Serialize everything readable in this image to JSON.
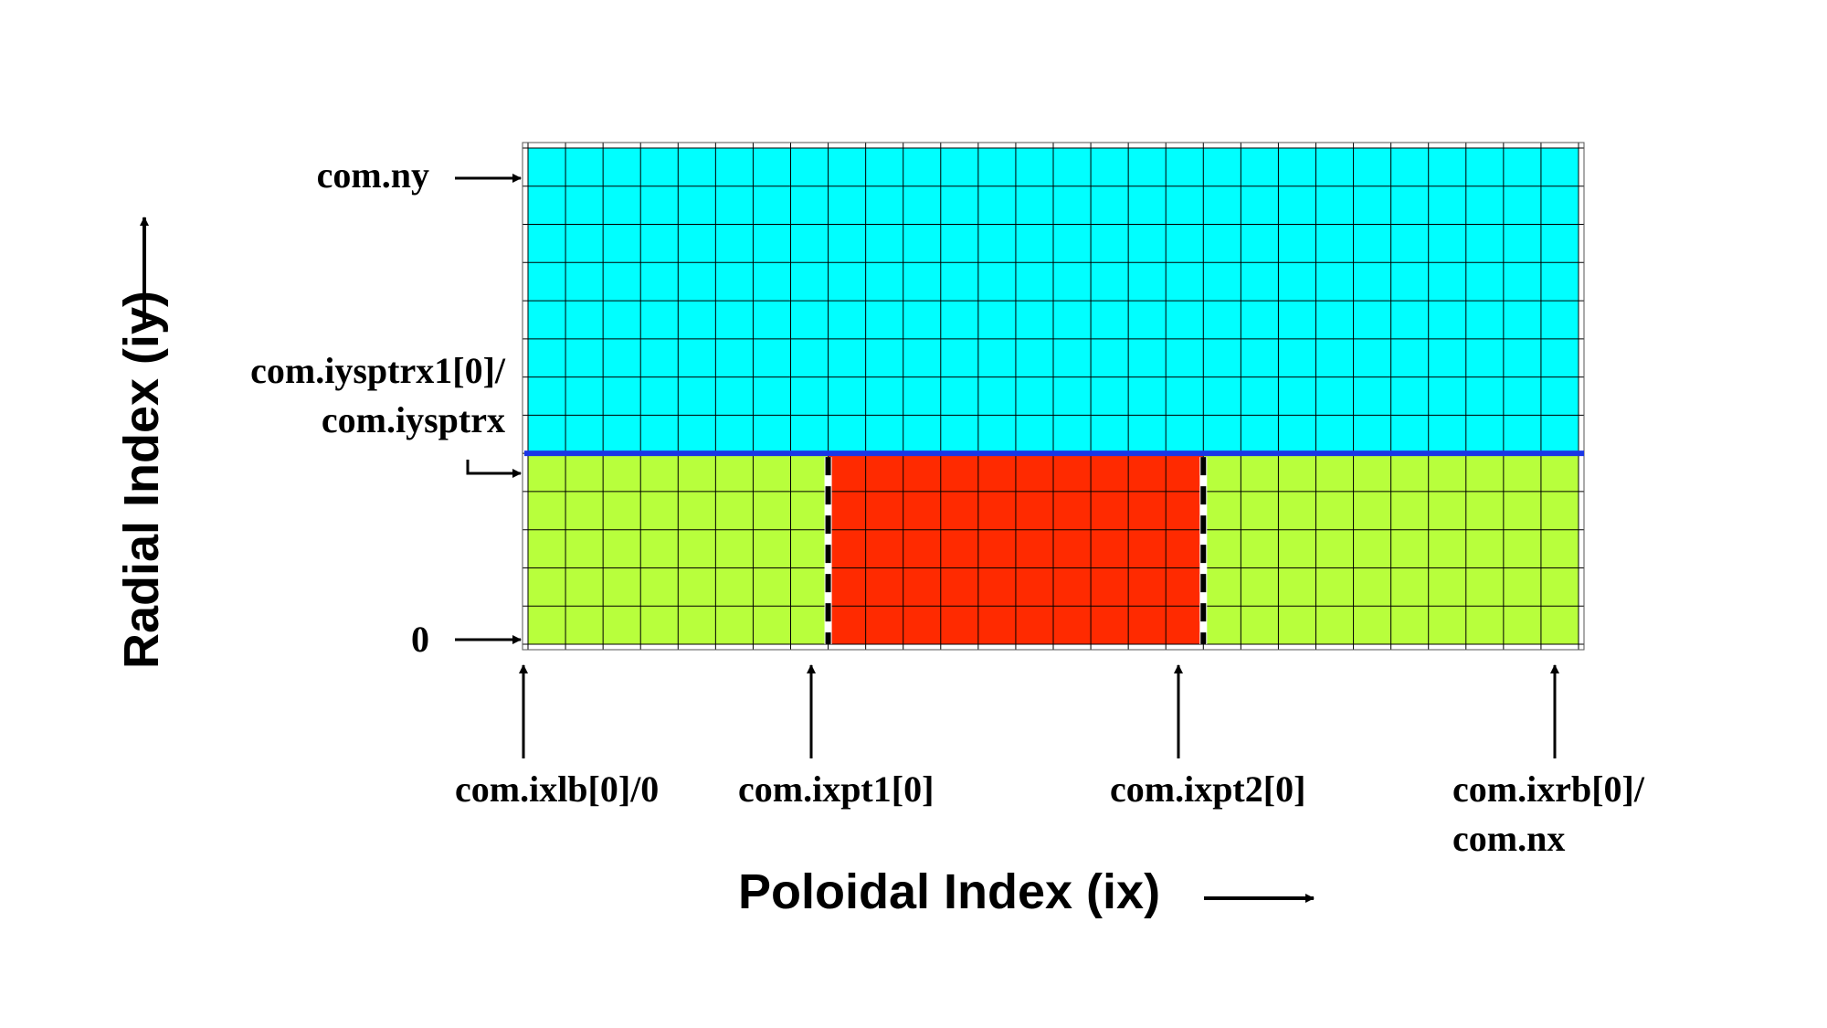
{
  "diagram": {
    "y_axis_title": "Radial Index (iy)",
    "x_axis_title": "Poloidal Index (ix)",
    "y_markers": {
      "top": "com.ny",
      "separatrix_line1": "com.iysptrx1[0]/",
      "separatrix_line2": "com.iysptrx",
      "bottom": "0"
    },
    "x_markers": {
      "left": "com.ixlb[0]/0",
      "xpt1": "com.ixpt1[0]",
      "xpt2": "com.ixpt2[0]",
      "right_line1": "com.ixrb[0]/",
      "right_line2": "com.nx"
    },
    "grid": {
      "columns": 28,
      "rows": 13,
      "separatrix_row": 5,
      "xpt1_column": 8,
      "xpt2_column": 18
    },
    "regions": [
      {
        "name": "core / scrape-off layer",
        "color": "#00ffff"
      },
      {
        "name": "left private flux",
        "color": "#b8ff3c"
      },
      {
        "name": "core below separatrix",
        "color": "#ff2a00"
      },
      {
        "name": "right private flux",
        "color": "#b8ff3c"
      }
    ],
    "colors": {
      "separatrix": "#1a36e6",
      "grid_line": "#000000",
      "arrow": "#000000"
    }
  }
}
